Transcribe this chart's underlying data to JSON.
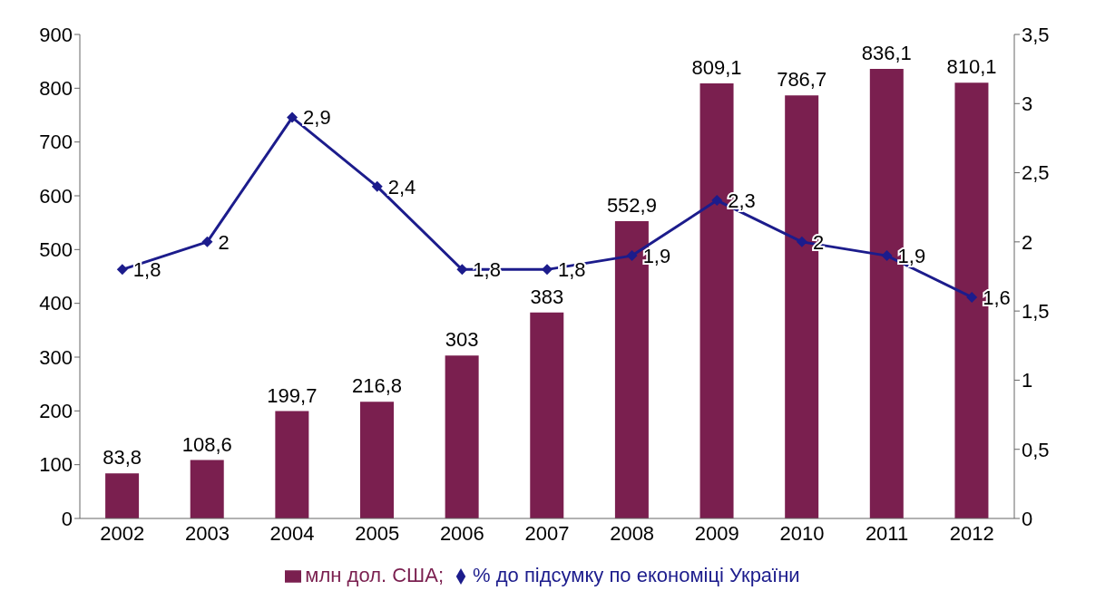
{
  "chart_data": {
    "type": "bar",
    "categories": [
      "2002",
      "2003",
      "2004",
      "2005",
      "2006",
      "2007",
      "2008",
      "2009",
      "2010",
      "2011",
      "2012"
    ],
    "series": [
      {
        "name": "млн дол. США;",
        "color": "#7a1f4f",
        "values": [
          83.8,
          108.6,
          199.7,
          216.8,
          303,
          383,
          552.9,
          809.1,
          786.7,
          836.1,
          810.1
        ],
        "value_labels": [
          "83,8",
          "108,6",
          "199,7",
          "216,8",
          "303",
          "383",
          "552,9",
          "809,1",
          "786,7",
          "836,1",
          "810,1"
        ]
      },
      {
        "name": "% до підсумку по економіці України",
        "type": "line",
        "axis": "y2",
        "color": "#1c1c8c",
        "marker": "diamond",
        "values": [
          1.8,
          2,
          2.9,
          2.4,
          1.8,
          1.8,
          1.9,
          2.3,
          2,
          1.9,
          1.6
        ],
        "value_labels": [
          "1,8",
          "2",
          "2,9",
          "2,4",
          "1,8",
          "1,8",
          "1,9",
          "2,3",
          "2",
          "1,9",
          "1,6"
        ]
      }
    ],
    "ylim": [
      0,
      900
    ],
    "yticks": [
      0,
      100,
      200,
      300,
      400,
      500,
      600,
      700,
      800,
      900
    ],
    "y2lim": [
      0,
      3.5
    ],
    "y2ticks": [
      0,
      {
        "value": 0.5,
        "label": "0,5"
      },
      1,
      {
        "value": 1.5,
        "label": "1,5"
      },
      2,
      {
        "value": 2.5,
        "label": "2,5"
      },
      3,
      {
        "value": 3.5,
        "label": "3,5"
      }
    ],
    "grid": false,
    "legend": "bottom"
  }
}
